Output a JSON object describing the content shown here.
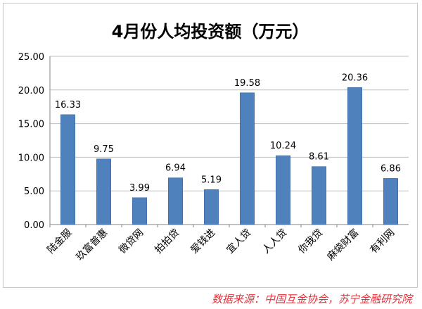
{
  "chart_data": {
    "type": "bar",
    "title": "4月份人均投资额（万元）",
    "xlabel": "",
    "ylabel": "",
    "categories": [
      "陆金服",
      "玖富普惠",
      "微贷网",
      "拍拍贷",
      "爱钱进",
      "宜人贷",
      "人人贷",
      "你我贷",
      "麻袋财富",
      "有利网"
    ],
    "values": [
      16.33,
      9.75,
      3.99,
      6.94,
      5.19,
      19.58,
      10.24,
      8.61,
      20.36,
      6.86
    ],
    "value_labels": [
      "16.33",
      "9.75",
      "3.99",
      "6.94",
      "5.19",
      "19.58",
      "10.24",
      "8.61",
      "20.36",
      "6.86"
    ],
    "ylim": [
      0,
      25
    ],
    "yticks": [
      "0.00",
      "5.00",
      "10.00",
      "15.00",
      "20.00",
      "25.00"
    ],
    "ytick_values": [
      0,
      5,
      10,
      15,
      20,
      25
    ],
    "grid": true,
    "legend": "none",
    "colors": {
      "bar": "#4f81bd",
      "bar_edge": "#3b6aa0",
      "grid": "#bfbfbf",
      "axis": "#868686",
      "text": "#000000"
    }
  },
  "source": "数据来源：中国互金协会，苏宁金融研究院"
}
